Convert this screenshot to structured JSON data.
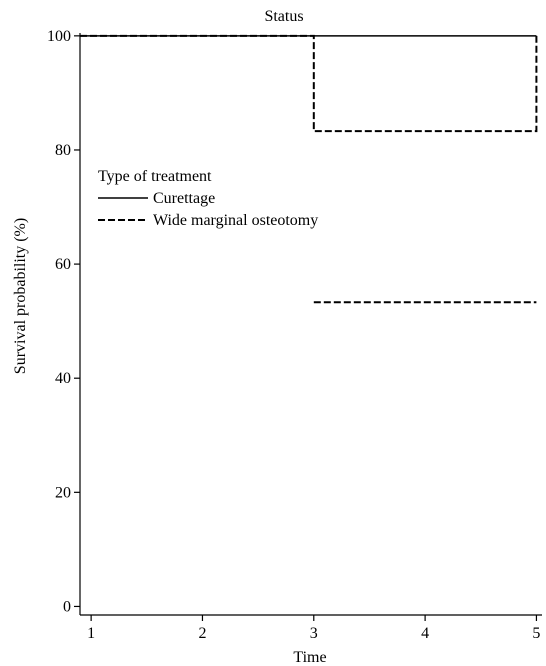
{
  "chart_data": {
    "type": "line",
    "title": "Status",
    "xlabel": "Time",
    "ylabel": "Survival probability (%)",
    "xlim": [
      0.9,
      5.05
    ],
    "ylim": [
      -1.5,
      100.5
    ],
    "xticks": [
      1,
      2,
      3,
      4,
      5
    ],
    "yticks": [
      0,
      20,
      40,
      60,
      80,
      100
    ],
    "grid": false,
    "legend": {
      "title": "Type of treatment",
      "placement": "left",
      "entries": [
        "Curettage",
        "Wide marginal osteotomy"
      ]
    },
    "series": [
      {
        "name": "Curettage",
        "style": "solid",
        "color": "#000000",
        "step": true,
        "x": [
          0.9,
          5.0
        ],
        "y": [
          100,
          100
        ]
      },
      {
        "name": "Wide marginal osteotomy",
        "style": "dashed",
        "color": "#000000",
        "step": true,
        "segments": [
          {
            "x": [
              0.9,
              3.0,
              3.0,
              5.0,
              5.0
            ],
            "y": [
              100,
              100,
              83.3,
              83.3,
              100
            ]
          },
          {
            "x": [
              3.0,
              5.0
            ],
            "y": [
              53.3,
              53.3
            ]
          }
        ]
      }
    ]
  }
}
